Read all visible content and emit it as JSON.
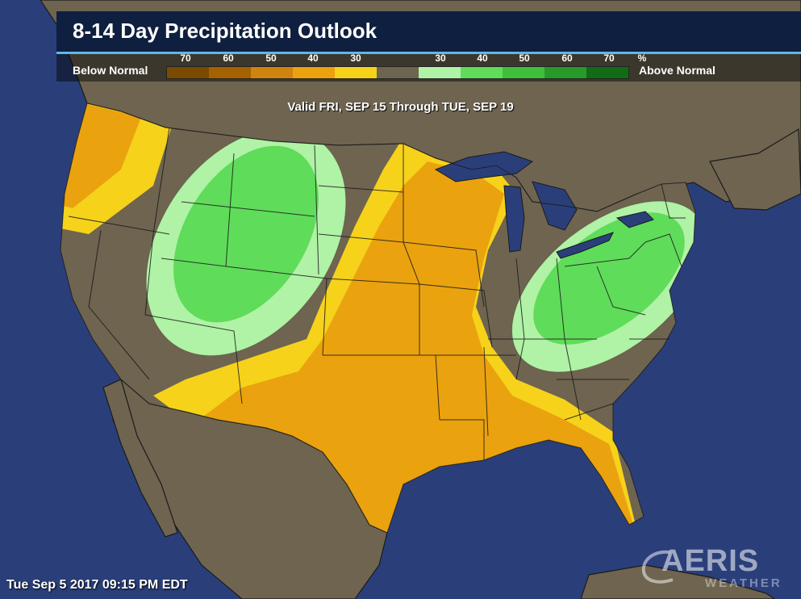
{
  "title": "8-14 Day Precipitation Outlook",
  "legend": {
    "below_label": "Below Normal",
    "above_label": "Above Normal",
    "unit": "%",
    "below_ticks": [
      "70",
      "60",
      "50",
      "40",
      "30"
    ],
    "above_ticks": [
      "30",
      "40",
      "50",
      "60",
      "70"
    ],
    "colors": [
      "#7a4a00",
      "#a46200",
      "#cf8410",
      "#eaa20f",
      "#f6d21b",
      "#6e6450",
      "#b0f2a6",
      "#5fdc5a",
      "#3fbf3a",
      "#279a2a",
      "#136b16"
    ]
  },
  "valid_text": "Valid FRI, SEP 15 Through TUE, SEP 19",
  "timestamp": "Tue Sep 5 2017 09:15 PM EDT",
  "logo": {
    "main": "AERIS",
    "sub": "WEATHER"
  },
  "map_colors": {
    "ocean": "#2a3f7a",
    "land": "#6e6450",
    "near_normal": "#6e6450",
    "below_33": "#f6d21b",
    "below_40": "#eaa20f",
    "above_33": "#b0f2a6",
    "above_40": "#5fdc5a",
    "borders": "#1a1a1a"
  }
}
